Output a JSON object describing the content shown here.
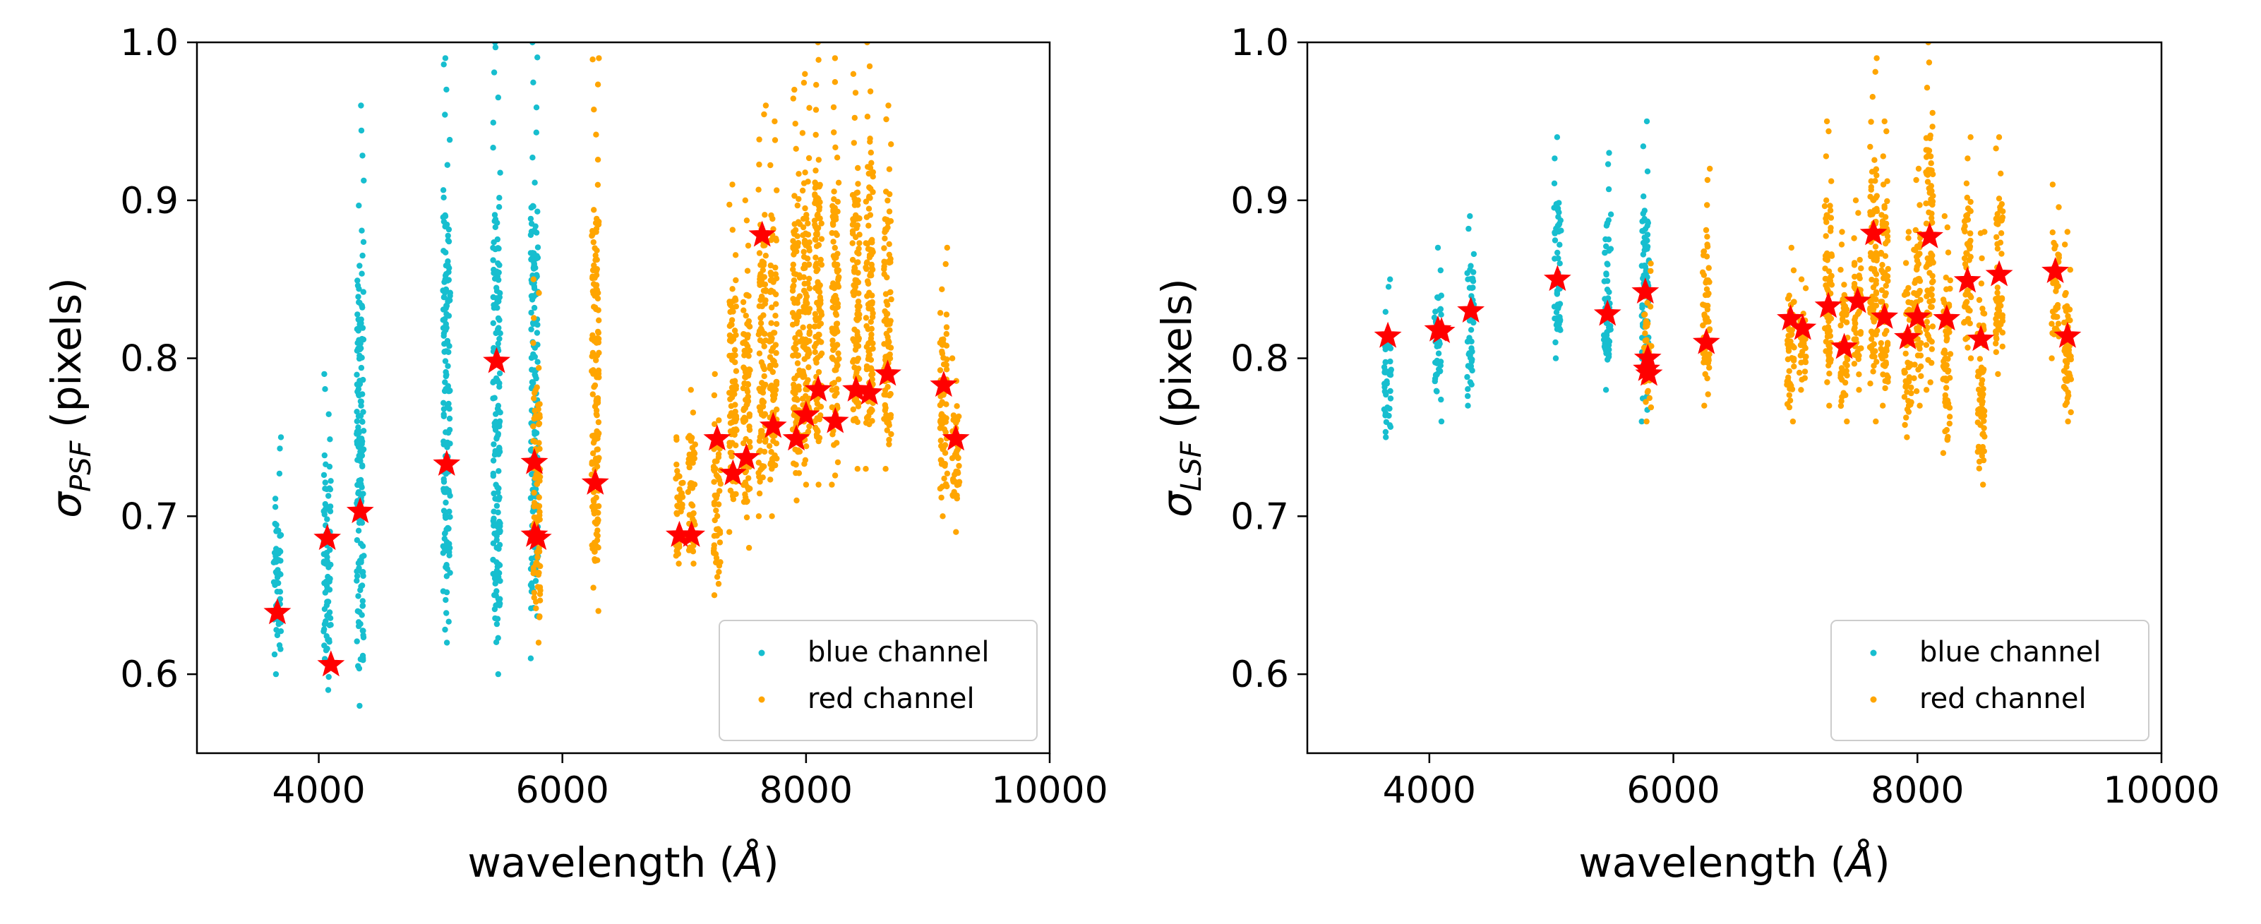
{
  "colors": {
    "blue_channel": "#17becf",
    "red_channel": "#ffa500",
    "star": "#ff0000",
    "axes": "#000000"
  },
  "chart_data": [
    {
      "type": "scatter",
      "xlim": [
        3000,
        10000
      ],
      "ylim": [
        0.55,
        1.0
      ],
      "x_ticks": [
        4000,
        6000,
        8000,
        10000
      ],
      "y_ticks": [
        0.6,
        0.7,
        0.8,
        0.9,
        1.0
      ],
      "x_tick_labels": [
        "4000",
        "6000",
        "8000",
        "10000"
      ],
      "y_tick_labels": [
        "0.6",
        "0.7",
        "0.8",
        "0.9",
        "1.0"
      ],
      "ylabel_symbol": "σ",
      "ylabel_subscript": "PSF",
      "ylabel_rest": " (pixels)",
      "xlabel_prefix": "wavelength (",
      "xlabel_unit": "Å",
      "xlabel_suffix": ")",
      "legend_position": "lower-right",
      "legend": [
        "blue channel",
        "red channel"
      ],
      "blue_columns": [
        {
          "x": 3660,
          "min": 0.6,
          "max": 0.75
        },
        {
          "x": 4070,
          "min": 0.59,
          "max": 0.79
        },
        {
          "x": 4340,
          "min": 0.58,
          "max": 0.96
        },
        {
          "x": 5050,
          "min": 0.62,
          "max": 0.99
        },
        {
          "x": 5460,
          "min": 0.6,
          "max": 1.0
        },
        {
          "x": 5770,
          "min": 0.61,
          "max": 1.0
        }
      ],
      "red_columns": [
        {
          "x": 5790,
          "min": 0.62,
          "max": 0.85
        },
        {
          "x": 6270,
          "min": 0.64,
          "max": 0.99
        },
        {
          "x": 6960,
          "min": 0.67,
          "max": 0.75
        },
        {
          "x": 7060,
          "min": 0.67,
          "max": 0.78
        },
        {
          "x": 7270,
          "min": 0.65,
          "max": 0.79
        },
        {
          "x": 7400,
          "min": 0.69,
          "max": 0.91
        },
        {
          "x": 7510,
          "min": 0.68,
          "max": 0.9
        },
        {
          "x": 7640,
          "min": 0.7,
          "max": 0.96
        },
        {
          "x": 7730,
          "min": 0.7,
          "max": 0.95
        },
        {
          "x": 7920,
          "min": 0.71,
          "max": 0.97
        },
        {
          "x": 8000,
          "min": 0.72,
          "max": 0.98
        },
        {
          "x": 8100,
          "min": 0.72,
          "max": 1.0
        },
        {
          "x": 8240,
          "min": 0.72,
          "max": 0.99
        },
        {
          "x": 8410,
          "min": 0.73,
          "max": 0.98
        },
        {
          "x": 8520,
          "min": 0.73,
          "max": 1.0
        },
        {
          "x": 8670,
          "min": 0.73,
          "max": 0.96
        },
        {
          "x": 9130,
          "min": 0.7,
          "max": 0.87
        },
        {
          "x": 9230,
          "min": 0.69,
          "max": 0.8
        }
      ],
      "stars": [
        {
          "x": 3660,
          "y": 0.639
        },
        {
          "x": 4070,
          "y": 0.686
        },
        {
          "x": 4100,
          "y": 0.606
        },
        {
          "x": 4340,
          "y": 0.703
        },
        {
          "x": 5050,
          "y": 0.733
        },
        {
          "x": 5460,
          "y": 0.798
        },
        {
          "x": 5770,
          "y": 0.734
        },
        {
          "x": 5770,
          "y": 0.688
        },
        {
          "x": 5800,
          "y": 0.686
        },
        {
          "x": 6270,
          "y": 0.721
        },
        {
          "x": 6960,
          "y": 0.688
        },
        {
          "x": 7060,
          "y": 0.688
        },
        {
          "x": 7270,
          "y": 0.749
        },
        {
          "x": 7400,
          "y": 0.727
        },
        {
          "x": 7510,
          "y": 0.737
        },
        {
          "x": 7640,
          "y": 0.878
        },
        {
          "x": 7730,
          "y": 0.757
        },
        {
          "x": 7920,
          "y": 0.749
        },
        {
          "x": 8000,
          "y": 0.764
        },
        {
          "x": 8100,
          "y": 0.78
        },
        {
          "x": 8240,
          "y": 0.76
        },
        {
          "x": 8410,
          "y": 0.78
        },
        {
          "x": 8520,
          "y": 0.778
        },
        {
          "x": 8670,
          "y": 0.79
        },
        {
          "x": 9130,
          "y": 0.783
        },
        {
          "x": 9230,
          "y": 0.749
        }
      ]
    },
    {
      "type": "scatter",
      "xlim": [
        3000,
        10000
      ],
      "ylim": [
        0.55,
        1.0
      ],
      "x_ticks": [
        4000,
        6000,
        8000,
        10000
      ],
      "y_ticks": [
        0.6,
        0.7,
        0.8,
        0.9,
        1.0
      ],
      "x_tick_labels": [
        "4000",
        "6000",
        "8000",
        "10000"
      ],
      "y_tick_labels": [
        "0.6",
        "0.7",
        "0.8",
        "0.9",
        "1.0"
      ],
      "ylabel_symbol": "σ",
      "ylabel_subscript": "LSF",
      "ylabel_rest": " (pixels)",
      "xlabel_prefix": "wavelength (",
      "xlabel_unit": "Å",
      "xlabel_suffix": ")",
      "legend_position": "lower-right",
      "legend": [
        "blue channel",
        "red channel"
      ],
      "blue_columns": [
        {
          "x": 3660,
          "min": 0.75,
          "max": 0.85
        },
        {
          "x": 4070,
          "min": 0.76,
          "max": 0.87
        },
        {
          "x": 4340,
          "min": 0.77,
          "max": 0.89
        },
        {
          "x": 5050,
          "min": 0.8,
          "max": 0.94
        },
        {
          "x": 5460,
          "min": 0.78,
          "max": 0.93
        },
        {
          "x": 5770,
          "min": 0.76,
          "max": 0.95
        }
      ],
      "red_columns": [
        {
          "x": 5790,
          "min": 0.76,
          "max": 0.86
        },
        {
          "x": 6270,
          "min": 0.77,
          "max": 0.92
        },
        {
          "x": 6960,
          "min": 0.76,
          "max": 0.87
        },
        {
          "x": 7060,
          "min": 0.78,
          "max": 0.85
        },
        {
          "x": 7270,
          "min": 0.77,
          "max": 0.95
        },
        {
          "x": 7400,
          "min": 0.76,
          "max": 0.88
        },
        {
          "x": 7510,
          "min": 0.78,
          "max": 0.9
        },
        {
          "x": 7640,
          "min": 0.76,
          "max": 0.99
        },
        {
          "x": 7730,
          "min": 0.77,
          "max": 0.95
        },
        {
          "x": 7920,
          "min": 0.75,
          "max": 0.88
        },
        {
          "x": 8000,
          "min": 0.77,
          "max": 0.92
        },
        {
          "x": 8100,
          "min": 0.78,
          "max": 1.0
        },
        {
          "x": 8240,
          "min": 0.74,
          "max": 0.89
        },
        {
          "x": 8410,
          "min": 0.8,
          "max": 0.94
        },
        {
          "x": 8520,
          "min": 0.72,
          "max": 0.88
        },
        {
          "x": 8670,
          "min": 0.79,
          "max": 0.94
        },
        {
          "x": 9130,
          "min": 0.8,
          "max": 0.91
        },
        {
          "x": 9230,
          "min": 0.76,
          "max": 0.88
        }
      ],
      "stars": [
        {
          "x": 3660,
          "y": 0.814
        },
        {
          "x": 4070,
          "y": 0.818
        },
        {
          "x": 4100,
          "y": 0.817
        },
        {
          "x": 4340,
          "y": 0.83
        },
        {
          "x": 5050,
          "y": 0.85
        },
        {
          "x": 5460,
          "y": 0.828
        },
        {
          "x": 5770,
          "y": 0.842
        },
        {
          "x": 5790,
          "y": 0.8
        },
        {
          "x": 5780,
          "y": 0.793
        },
        {
          "x": 5800,
          "y": 0.79
        },
        {
          "x": 6270,
          "y": 0.81
        },
        {
          "x": 6960,
          "y": 0.825
        },
        {
          "x": 7060,
          "y": 0.819
        },
        {
          "x": 7270,
          "y": 0.833
        },
        {
          "x": 7400,
          "y": 0.807
        },
        {
          "x": 7510,
          "y": 0.836
        },
        {
          "x": 7640,
          "y": 0.879
        },
        {
          "x": 7730,
          "y": 0.826
        },
        {
          "x": 7920,
          "y": 0.813
        },
        {
          "x": 8000,
          "y": 0.826
        },
        {
          "x": 8100,
          "y": 0.877
        },
        {
          "x": 8240,
          "y": 0.825
        },
        {
          "x": 8410,
          "y": 0.849
        },
        {
          "x": 8520,
          "y": 0.812
        },
        {
          "x": 8670,
          "y": 0.853
        },
        {
          "x": 9130,
          "y": 0.855
        },
        {
          "x": 9230,
          "y": 0.814
        }
      ]
    }
  ]
}
